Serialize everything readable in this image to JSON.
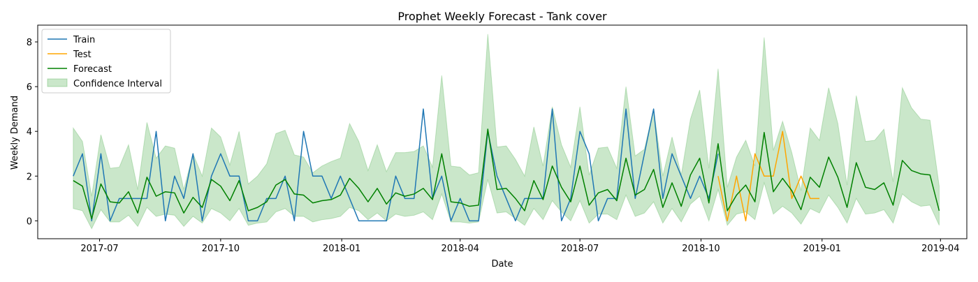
{
  "chart_data": {
    "type": "line",
    "title": "Prophet Weekly Forecast - Tank cover",
    "xlabel": "Date",
    "ylabel": "Weekly Demand",
    "x_axis": {
      "type": "date",
      "min": "2017-05-15",
      "max": "2019-04-21",
      "ticks": [
        "2017-07-01",
        "2017-10-01",
        "2018-01-01",
        "2018-04-01",
        "2018-07-01",
        "2018-10-01",
        "2019-01-01",
        "2019-04-01"
      ],
      "tick_labels": [
        "2017-07",
        "2017-10",
        "2018-01",
        "2018-04",
        "2018-07",
        "2018-10",
        "2019-01",
        "2019-04"
      ]
    },
    "y_axis": {
      "min": -0.8,
      "max": 8.75,
      "ticks": [
        0,
        2,
        4,
        6,
        8
      ]
    },
    "grid": false,
    "legend_position": "top-left",
    "start_date": "2017-06-11",
    "week_step_days": 7,
    "series": [
      {
        "name": "Train",
        "color": "#1f77b4",
        "start_index": 0,
        "values": [
          2,
          3,
          0,
          3,
          0,
          1,
          1,
          1,
          1,
          4,
          0,
          2,
          1,
          3,
          0,
          2,
          3,
          2,
          2,
          0,
          0,
          1,
          1,
          2,
          0,
          4,
          2,
          2,
          1,
          2,
          1,
          0,
          0,
          0,
          0,
          2,
          1,
          1,
          5,
          1,
          2,
          0,
          1,
          0,
          0,
          4,
          2,
          1,
          0,
          1,
          1,
          1,
          5,
          0,
          1,
          4,
          3,
          0,
          1,
          1,
          5,
          1,
          3,
          5,
          1,
          3,
          2,
          1,
          2,
          1,
          3
        ]
      },
      {
        "name": "Test",
        "color": "#ffa500",
        "start_index": 70,
        "values": [
          2,
          0,
          2,
          0,
          3,
          2,
          2,
          4,
          1,
          2,
          1,
          1
        ]
      },
      {
        "name": "Forecast",
        "color": "#008000",
        "start_index": 0,
        "values": [
          1.8,
          1.55,
          0.1,
          1.65,
          0.85,
          0.8,
          1.3,
          0.35,
          1.95,
          1.1,
          1.3,
          1.25,
          0.35,
          1.05,
          0.6,
          1.85,
          1.55,
          0.9,
          1.8,
          0.45,
          0.6,
          0.85,
          1.6,
          1.85,
          1.2,
          1.15,
          0.8,
          0.9,
          0.95,
          1.15,
          1.9,
          1.45,
          0.85,
          1.45,
          0.75,
          1.25,
          1.1,
          1.2,
          1.45,
          0.95,
          3.0,
          0.85,
          0.8,
          0.65,
          0.7,
          4.1,
          1.4,
          1.45,
          1.0,
          0.45,
          1.8,
          0.95,
          2.45,
          1.5,
          0.85,
          2.45,
          0.7,
          1.25,
          1.4,
          0.9,
          2.8,
          1.15,
          1.4,
          2.3,
          0.6,
          1.7,
          0.65,
          2.05,
          2.8,
          0.8,
          3.45,
          0.45,
          1.15,
          1.6,
          0.85,
          3.95,
          1.3,
          1.9,
          1.35,
          0.5,
          1.95,
          1.5,
          2.85,
          1.95,
          0.6,
          2.6,
          1.5,
          1.4,
          1.7,
          0.7,
          2.7,
          2.25,
          2.1,
          2.05,
          0.45
        ]
      },
      {
        "name": "Confidence Interval",
        "color": "#2ca02c",
        "upper": [
          4.15,
          3.55,
          1.1,
          3.85,
          2.35,
          2.4,
          3.4,
          1.4,
          4.4,
          2.8,
          3.35,
          3.25,
          1.4,
          3.0,
          2.0,
          4.15,
          3.75,
          2.5,
          4.0,
          1.65,
          2.0,
          2.55,
          3.9,
          4.05,
          2.95,
          2.85,
          2.15,
          2.45,
          2.65,
          2.8,
          4.35,
          3.55,
          2.25,
          3.4,
          2.2,
          3.05,
          3.05,
          3.1,
          3.35,
          2.4,
          6.5,
          2.45,
          2.4,
          2.05,
          2.15,
          8.35,
          3.3,
          3.35,
          2.75,
          2.0,
          4.2,
          2.45,
          5.1,
          3.4,
          2.4,
          5.1,
          2.05,
          3.25,
          3.3,
          2.35,
          6.0,
          2.9,
          3.2,
          5.0,
          2.0,
          3.75,
          2.05,
          4.55,
          5.85,
          2.35,
          6.8,
          1.5,
          2.85,
          3.6,
          2.45,
          8.2,
          3.15,
          4.45,
          3.05,
          1.35,
          4.15,
          3.6,
          5.95,
          4.35,
          1.6,
          5.6,
          3.55,
          3.6,
          4.1,
          1.75,
          5.95,
          5.05,
          4.55,
          4.5,
          1.55
        ],
        "lower": [
          0.55,
          0.45,
          -0.35,
          0.5,
          -0.05,
          -0.05,
          0.25,
          -0.25,
          0.6,
          0.2,
          0.3,
          0.25,
          -0.25,
          0.2,
          -0.1,
          0.55,
          0.35,
          0.0,
          0.55,
          -0.2,
          -0.1,
          -0.05,
          0.4,
          0.55,
          0.2,
          0.2,
          -0.05,
          0.05,
          0.1,
          0.2,
          0.6,
          0.45,
          0.05,
          0.35,
          0.0,
          0.3,
          0.2,
          0.25,
          0.4,
          0.05,
          1.2,
          -0.05,
          -0.05,
          -0.1,
          -0.05,
          1.85,
          0.35,
          0.4,
          0.1,
          -0.2,
          0.55,
          0.05,
          0.9,
          0.4,
          0.0,
          0.9,
          -0.1,
          0.3,
          0.3,
          0.05,
          1.15,
          0.2,
          0.35,
          0.85,
          -0.1,
          0.55,
          -0.05,
          0.75,
          1.1,
          0.0,
          1.4,
          -0.2,
          0.3,
          0.4,
          0.05,
          1.7,
          0.3,
          0.65,
          0.35,
          -0.15,
          0.55,
          0.35,
          1.15,
          0.6,
          -0.1,
          1.0,
          0.3,
          0.35,
          0.5,
          -0.1,
          1.2,
          0.85,
          0.65,
          0.7,
          -0.2
        ]
      }
    ]
  }
}
